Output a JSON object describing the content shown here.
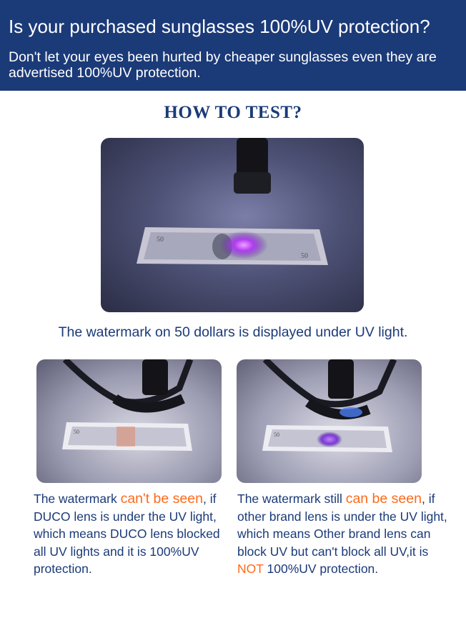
{
  "header": {
    "title": "Is your purchased sunglasses 100%UV protection?",
    "subtitle": "Don't let your eyes been hurted by cheaper sunglasses even they are advertised 100%UV protection."
  },
  "how_to_test": "HOW TO TEST?",
  "main_caption": "The watermark on 50 dollars is displayed under UV light.",
  "left_caption": {
    "line1_pre": "The watermark ",
    "line1_highlight": "can't be seen",
    "line1_post": ",",
    "rest": "if DUCO lens is under the UV light, which means DUCO lens blocked all UV lights and it is 100%UV protection."
  },
  "right_caption": {
    "line1_pre": "The watermark still ",
    "line1_highlight": "can be seen",
    "line1_post": ",",
    "rest_pre": "if other brand lens is under the UV light, which means Other brand lens can block UV but can't block all UV,it is ",
    "rest_highlight": "NOT",
    "rest_post": "100%UV protection."
  },
  "colors": {
    "header_bg": "#1b3a78",
    "text_blue": "#1b3a78",
    "highlight_orange": "#ff6a1a"
  },
  "images": {
    "top": "uv-flashlight-over-50-dollar-bill",
    "left": "duco-sunglasses-lens-over-bill",
    "right": "other-brand-lens-over-bill"
  }
}
